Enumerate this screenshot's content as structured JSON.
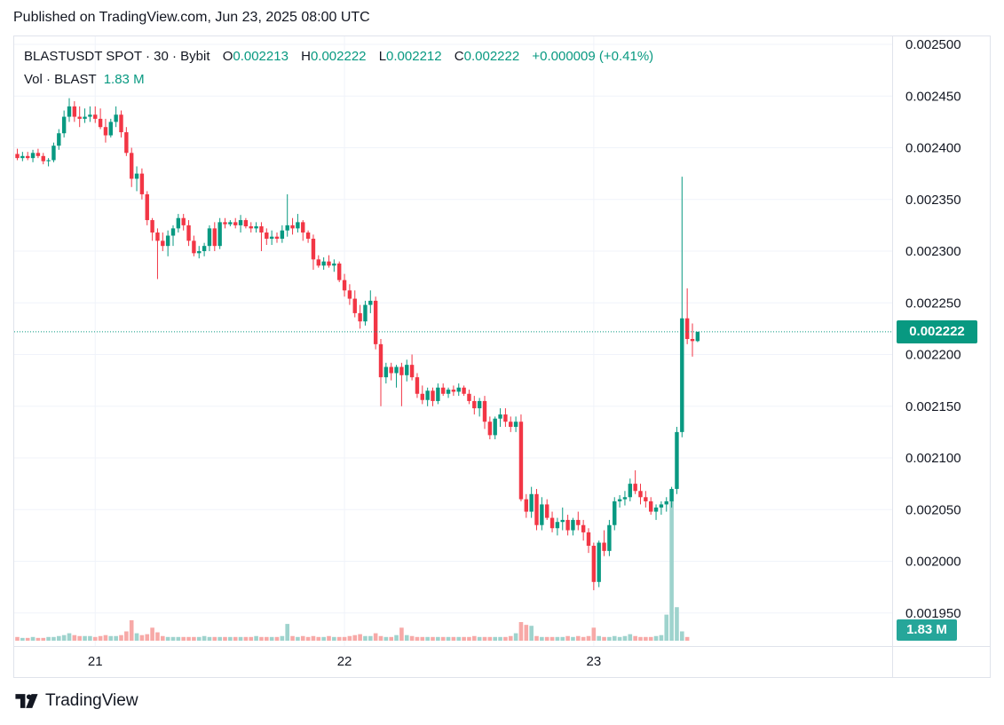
{
  "header": {
    "published": "Published on TradingView.com, Jun 23, 2025 08:00 UTC"
  },
  "legend": {
    "symbol": "BLASTUSDT SPOT · 30 · Bybit",
    "o_label": "O",
    "o_value": "0.002213",
    "h_label": "H",
    "h_value": "0.002222",
    "l_label": "L",
    "l_value": "0.002212",
    "c_label": "C",
    "c_value": "0.002222",
    "change": "+0.000009 (+0.41%)"
  },
  "volume_legend": {
    "label": "Vol · BLAST",
    "value": "1.83 M"
  },
  "price_tag": "0.002222",
  "volume_tag": "1.83 M",
  "brand": "TradingView",
  "colors": {
    "up": "#089981",
    "down": "#f23645",
    "vol_up": "#9ed3cd",
    "vol_down": "#f7a9a7",
    "grid": "#f0f3fa"
  },
  "chart_data": {
    "type": "candlestick",
    "symbol": "BLASTUSDT",
    "interval": "30",
    "exchange": "Bybit",
    "y_ticks": [
      "0.002500",
      "0.002450",
      "0.002400",
      "0.002350",
      "0.002300",
      "0.002250",
      "0.002200",
      "0.002150",
      "0.002100",
      "0.002050",
      "0.002000",
      "0.001950"
    ],
    "x_ticks": [
      {
        "label": "21",
        "index": 15
      },
      {
        "label": "22",
        "index": 63
      },
      {
        "label": "23",
        "index": 111
      }
    ],
    "ylim": [
      0.001925,
      0.00251
    ],
    "grid": true,
    "last_price": 0.002222,
    "candles": [
      [
        0.002394,
        0.002399,
        0.002388,
        0.00239
      ],
      [
        0.00239,
        0.002396,
        0.002387,
        0.002392
      ],
      [
        0.002392,
        0.002396,
        0.002388,
        0.00239
      ],
      [
        0.00239,
        0.002398,
        0.002386,
        0.002395
      ],
      [
        0.002395,
        0.002399,
        0.00239,
        0.002392
      ],
      [
        0.002392,
        0.002395,
        0.002384,
        0.002387
      ],
      [
        0.002387,
        0.00239,
        0.002382,
        0.002388
      ],
      [
        0.002388,
        0.002405,
        0.002386,
        0.002402
      ],
      [
        0.002402,
        0.002418,
        0.002398,
        0.002414
      ],
      [
        0.002414,
        0.002436,
        0.00241,
        0.00243
      ],
      [
        0.00243,
        0.002448,
        0.002425,
        0.00244
      ],
      [
        0.00244,
        0.002445,
        0.002425,
        0.00243
      ],
      [
        0.00243,
        0.00244,
        0.00242,
        0.002428
      ],
      [
        0.002428,
        0.002438,
        0.002424,
        0.00243
      ],
      [
        0.00243,
        0.00244,
        0.002425,
        0.002432
      ],
      [
        0.002432,
        0.00244,
        0.002424,
        0.002428
      ],
      [
        0.002428,
        0.002438,
        0.002418,
        0.00242
      ],
      [
        0.00242,
        0.002428,
        0.002405,
        0.002412
      ],
      [
        0.002412,
        0.002428,
        0.00241,
        0.002425
      ],
      [
        0.002425,
        0.00244,
        0.00242,
        0.002432
      ],
      [
        0.002432,
        0.002436,
        0.00241,
        0.002415
      ],
      [
        0.002415,
        0.00242,
        0.002392,
        0.002395
      ],
      [
        0.002395,
        0.0024,
        0.002362,
        0.00237
      ],
      [
        0.00237,
        0.002382,
        0.002358,
        0.002375
      ],
      [
        0.002375,
        0.00238,
        0.00235,
        0.002355
      ],
      [
        0.002355,
        0.002358,
        0.002325,
        0.00233
      ],
      [
        0.00233,
        0.002332,
        0.00231,
        0.002318
      ],
      [
        0.002318,
        0.002322,
        0.002273,
        0.00231
      ],
      [
        0.00231,
        0.002318,
        0.0023,
        0.002305
      ],
      [
        0.002305,
        0.00232,
        0.002295,
        0.002315
      ],
      [
        0.002315,
        0.002325,
        0.002305,
        0.002322
      ],
      [
        0.002322,
        0.002336,
        0.002318,
        0.002332
      ],
      [
        0.002332,
        0.002336,
        0.00232,
        0.002325
      ],
      [
        0.002325,
        0.00233,
        0.002305,
        0.00231
      ],
      [
        0.00231,
        0.002315,
        0.002295,
        0.002298
      ],
      [
        0.002298,
        0.002305,
        0.002293,
        0.0023
      ],
      [
        0.0023,
        0.002308,
        0.002295,
        0.002305
      ],
      [
        0.002305,
        0.002325,
        0.0023,
        0.002322
      ],
      [
        0.002322,
        0.002328,
        0.0023,
        0.002305
      ],
      [
        0.002305,
        0.002332,
        0.002302,
        0.002328
      ],
      [
        0.002328,
        0.002332,
        0.002322,
        0.002326
      ],
      [
        0.002326,
        0.00233,
        0.002324,
        0.002328
      ],
      [
        0.002328,
        0.002332,
        0.002322,
        0.002325
      ],
      [
        0.002325,
        0.002335,
        0.002318,
        0.00233
      ],
      [
        0.00233,
        0.002332,
        0.002322,
        0.002324
      ],
      [
        0.002324,
        0.002328,
        0.002318,
        0.002322
      ],
      [
        0.002322,
        0.002328,
        0.002318,
        0.002324
      ],
      [
        0.002324,
        0.002328,
        0.0023,
        0.002318
      ],
      [
        0.002318,
        0.002322,
        0.002306,
        0.002312
      ],
      [
        0.002312,
        0.00232,
        0.002306,
        0.002314
      ],
      [
        0.002314,
        0.002318,
        0.002308,
        0.002312
      ],
      [
        0.002312,
        0.002325,
        0.002308,
        0.00232
      ],
      [
        0.00232,
        0.002355,
        0.002314,
        0.002325
      ],
      [
        0.002325,
        0.002332,
        0.002316,
        0.002322
      ],
      [
        0.002322,
        0.002336,
        0.002318,
        0.002328
      ],
      [
        0.002328,
        0.00233,
        0.00231,
        0.002318
      ],
      [
        0.002318,
        0.00232,
        0.002308,
        0.002312
      ],
      [
        0.002312,
        0.002316,
        0.002282,
        0.002292
      ],
      [
        0.002292,
        0.002296,
        0.002284,
        0.002286
      ],
      [
        0.002286,
        0.002294,
        0.002282,
        0.00229
      ],
      [
        0.00229,
        0.002296,
        0.002284,
        0.002286
      ],
      [
        0.002286,
        0.002292,
        0.00228,
        0.002288
      ],
      [
        0.002288,
        0.00229,
        0.00227,
        0.002272
      ],
      [
        0.002272,
        0.002278,
        0.002256,
        0.002262
      ],
      [
        0.002262,
        0.002268,
        0.002248,
        0.002254
      ],
      [
        0.002254,
        0.002262,
        0.002236,
        0.00224
      ],
      [
        0.00224,
        0.002248,
        0.002225,
        0.002232
      ],
      [
        0.002232,
        0.002252,
        0.002228,
        0.002248
      ],
      [
        0.002248,
        0.002262,
        0.00224,
        0.002252
      ],
      [
        0.002252,
        0.002256,
        0.002205,
        0.00221
      ],
      [
        0.00221,
        0.002215,
        0.00215,
        0.002178
      ],
      [
        0.002178,
        0.002192,
        0.002172,
        0.002188
      ],
      [
        0.002188,
        0.002192,
        0.002175,
        0.002182
      ],
      [
        0.002182,
        0.00219,
        0.002168,
        0.002188
      ],
      [
        0.002188,
        0.002192,
        0.00215,
        0.00218
      ],
      [
        0.00218,
        0.002195,
        0.002174,
        0.00219
      ],
      [
        0.00219,
        0.0022,
        0.002175,
        0.002178
      ],
      [
        0.002178,
        0.002182,
        0.002158,
        0.002162
      ],
      [
        0.002162,
        0.00217,
        0.002152,
        0.002156
      ],
      [
        0.002156,
        0.002168,
        0.00215,
        0.002165
      ],
      [
        0.002165,
        0.002168,
        0.00215,
        0.002155
      ],
      [
        0.002155,
        0.002172,
        0.002152,
        0.002168
      ],
      [
        0.002168,
        0.002172,
        0.00216,
        0.002162
      ],
      [
        0.002162,
        0.002168,
        0.002158,
        0.002166
      ],
      [
        0.002166,
        0.00217,
        0.00216,
        0.002164
      ],
      [
        0.002164,
        0.002172,
        0.00216,
        0.002168
      ],
      [
        0.002168,
        0.00217,
        0.00216,
        0.002162
      ],
      [
        0.002162,
        0.002166,
        0.002152,
        0.002155
      ],
      [
        0.002155,
        0.00216,
        0.002142,
        0.002148
      ],
      [
        0.002148,
        0.002158,
        0.00214,
        0.002155
      ],
      [
        0.002155,
        0.00216,
        0.002128,
        0.002135
      ],
      [
        0.002135,
        0.00214,
        0.002118,
        0.002122
      ],
      [
        0.002122,
        0.00214,
        0.002118,
        0.002138
      ],
      [
        0.002138,
        0.002148,
        0.00213,
        0.002142
      ],
      [
        0.002142,
        0.002148,
        0.00213,
        0.002135
      ],
      [
        0.002135,
        0.00214,
        0.002125,
        0.00213
      ],
      [
        0.00213,
        0.00214,
        0.002125,
        0.002135
      ],
      [
        0.002135,
        0.002142,
        0.002058,
        0.00206
      ],
      [
        0.00206,
        0.002065,
        0.002042,
        0.002048
      ],
      [
        0.002048,
        0.002072,
        0.002042,
        0.002065
      ],
      [
        0.002065,
        0.00207,
        0.00203,
        0.002035
      ],
      [
        0.002035,
        0.002062,
        0.00203,
        0.002055
      ],
      [
        0.002055,
        0.00206,
        0.00204,
        0.002042
      ],
      [
        0.002042,
        0.002048,
        0.002028,
        0.002032
      ],
      [
        0.002032,
        0.002042,
        0.002025,
        0.002038
      ],
      [
        0.002038,
        0.002052,
        0.00203,
        0.00204
      ],
      [
        0.00204,
        0.002045,
        0.002025,
        0.00203
      ],
      [
        0.00203,
        0.002042,
        0.002025,
        0.00204
      ],
      [
        0.00204,
        0.002048,
        0.00203,
        0.002035
      ],
      [
        0.002035,
        0.00204,
        0.00202,
        0.002028
      ],
      [
        0.002028,
        0.002032,
        0.002008,
        0.002015
      ],
      [
        0.002015,
        0.002018,
        0.001972,
        0.00198
      ],
      [
        0.00198,
        0.00202,
        0.001975,
        0.002018
      ],
      [
        0.002018,
        0.00203,
        0.002005,
        0.00201
      ],
      [
        0.00201,
        0.00204,
        0.002005,
        0.002035
      ],
      [
        0.002035,
        0.002062,
        0.00203,
        0.002058
      ],
      [
        0.002058,
        0.002064,
        0.002052,
        0.00206
      ],
      [
        0.00206,
        0.002068,
        0.002054,
        0.002062
      ],
      [
        0.002062,
        0.00208,
        0.002058,
        0.002075
      ],
      [
        0.002075,
        0.002088,
        0.002065,
        0.002068
      ],
      [
        0.002068,
        0.002075,
        0.002055,
        0.002062
      ],
      [
        0.002062,
        0.002068,
        0.002052,
        0.002058
      ],
      [
        0.002058,
        0.002062,
        0.002045,
        0.002048
      ],
      [
        0.002048,
        0.002055,
        0.00204,
        0.002052
      ],
      [
        0.002052,
        0.002058,
        0.002045,
        0.002055
      ],
      [
        0.002055,
        0.002062,
        0.002048,
        0.002058
      ],
      [
        0.002058,
        0.002072,
        0.002052,
        0.00207
      ],
      [
        0.00207,
        0.00213,
        0.002065,
        0.002125
      ],
      [
        0.002125,
        0.002372,
        0.00212,
        0.002235
      ],
      [
        0.002235,
        0.002264,
        0.00221,
        0.002215
      ],
      [
        0.002215,
        0.00223,
        0.002198,
        0.002213
      ],
      [
        0.002213,
        0.002222,
        0.002212,
        0.002222
      ]
    ],
    "volume": [
      4,
      3,
      3,
      4,
      3,
      3,
      4,
      4,
      5,
      6,
      8,
      6,
      5,
      5,
      5,
      4,
      5,
      6,
      5,
      5,
      6,
      10,
      22,
      8,
      6,
      7,
      14,
      9,
      5,
      4,
      4,
      4,
      4,
      4,
      4,
      4,
      5,
      4,
      4,
      4,
      4,
      4,
      4,
      4,
      4,
      4,
      5,
      4,
      4,
      4,
      4,
      5,
      18,
      5,
      4,
      5,
      4,
      5,
      4,
      4,
      5,
      4,
      4,
      4,
      5,
      6,
      7,
      5,
      5,
      8,
      5,
      4,
      4,
      6,
      14,
      6,
      5,
      4,
      4,
      4,
      4,
      4,
      4,
      4,
      4,
      4,
      4,
      4,
      5,
      4,
      4,
      4,
      4,
      4,
      4,
      5,
      8,
      20,
      17,
      16,
      5,
      4,
      4,
      4,
      4,
      4,
      5,
      4,
      5,
      4,
      5,
      14,
      5,
      4,
      4,
      5,
      4,
      5,
      7,
      5,
      4,
      4,
      4,
      5,
      6,
      28,
      162,
      36,
      10,
      4
    ]
  }
}
